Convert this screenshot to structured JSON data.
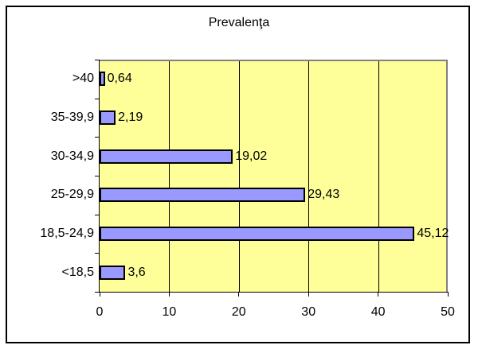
{
  "chart_data": {
    "type": "bar",
    "orientation": "horizontal",
    "title": "Prevalenţa",
    "xlabel": "",
    "ylabel": "",
    "categories": [
      ">40",
      "35-39,9",
      "30-34,9",
      "25-29,9",
      "18,5-24,9",
      "<18,5"
    ],
    "values": [
      0.64,
      2.19,
      19.02,
      29.43,
      45.12,
      3.6
    ],
    "value_labels": [
      "0,64",
      "2,19",
      "19,02",
      "29,43",
      "45,12",
      "3,6"
    ],
    "xlim": [
      0,
      50
    ],
    "xticks": [
      "0",
      "10",
      "20",
      "30",
      "40",
      "50"
    ],
    "grid": "vertical major gridlines",
    "legend": "none",
    "colors": {
      "bar_fill": "#9999ff",
      "bar_border": "#000000",
      "plot_bg": "#ffff99"
    }
  }
}
